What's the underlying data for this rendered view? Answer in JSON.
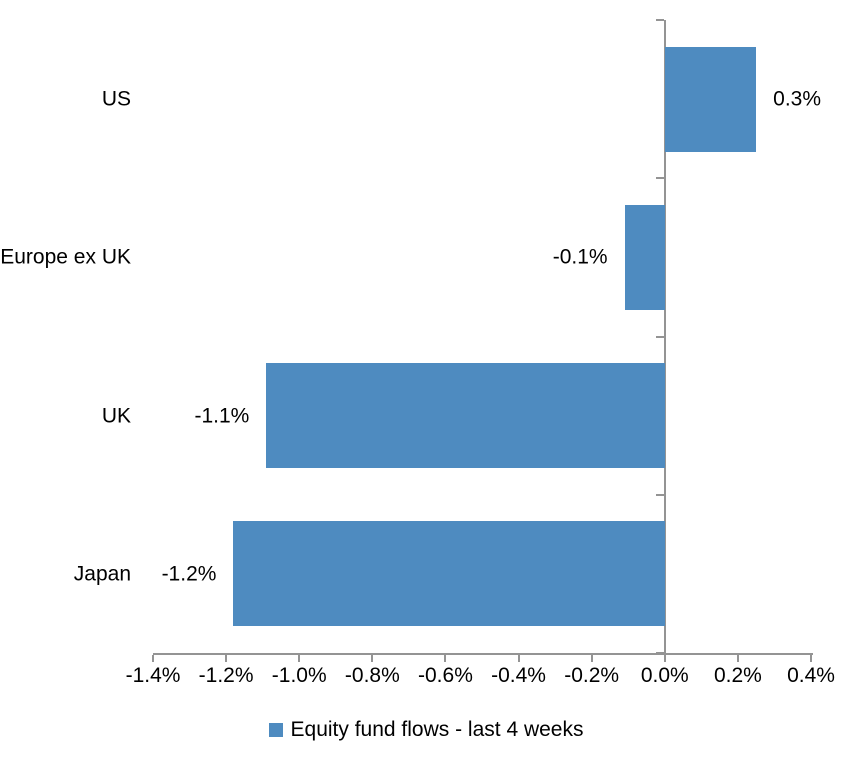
{
  "chart_data": {
    "type": "bar",
    "orientation": "horizontal",
    "categories": [
      "US",
      "Europe ex UK",
      "UK",
      "Japan"
    ],
    "values": [
      0.25,
      -0.11,
      -1.09,
      -1.18
    ],
    "data_labels": [
      "0.3%",
      "-0.1%",
      "-1.1%",
      "-1.2%"
    ],
    "x_ticks": [
      "-1.4%",
      "-1.2%",
      "-1.0%",
      "-0.8%",
      "-0.6%",
      "-0.4%",
      "-0.2%",
      "0.0%",
      "0.2%",
      "0.4%"
    ],
    "x_tick_values": [
      -1.4,
      -1.2,
      -1.0,
      -0.8,
      -0.6,
      -0.4,
      -0.2,
      0.0,
      0.2,
      0.4
    ],
    "xlim": [
      -1.4,
      0.4
    ],
    "grid": false,
    "legend_position": "bottom",
    "legend": [
      {
        "label": "Equity fund flows - last 4 weeks",
        "color": "#4E8BC0"
      }
    ],
    "bar_color": "#4E8BC0",
    "axis_color": "#949494",
    "text_color": "#000000"
  }
}
